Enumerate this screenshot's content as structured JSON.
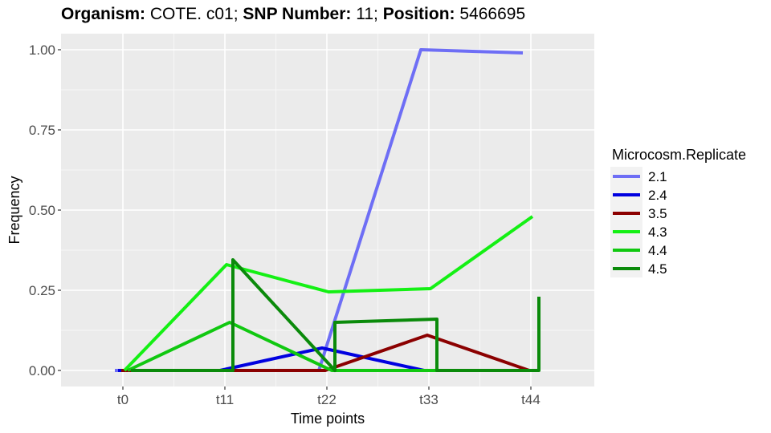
{
  "title": {
    "organism_label": "Organism:",
    "organism_value": " COTE. c01; ",
    "snp_label": "SNP Number:",
    "snp_value": " 11; ",
    "position_label": "Position:",
    "position_value": " 5466695"
  },
  "chart_data": {
    "type": "line",
    "title": "Organism: COTE. c01; SNP Number: 11; Position: 5466695",
    "xlabel": "Time points",
    "ylabel": "Frequency",
    "categories": [
      "t0",
      "t11",
      "t22",
      "t33",
      "t44"
    ],
    "yticks": [
      0.0,
      0.25,
      0.5,
      0.75,
      1.0
    ],
    "ytick_labels": [
      "0.00",
      "0.25",
      "0.50",
      "0.75",
      "1.00"
    ],
    "ylim": [
      -0.05,
      1.05
    ],
    "grid": true,
    "panel_background": "#ebebeb",
    "legend": {
      "title": "Microcosm.Replicate",
      "position": "right"
    },
    "series": [
      {
        "name": "2.1",
        "color": "#6e6ef5",
        "points": [
          [
            0,
            0.0
          ],
          [
            1,
            0.0
          ],
          [
            2,
            0.0
          ],
          [
            3,
            1.0
          ],
          [
            4,
            0.99
          ]
        ]
      },
      {
        "name": "2.4",
        "color": "#0000e0",
        "points": [
          [
            0,
            0.0
          ],
          [
            1,
            0.0
          ],
          [
            2,
            0.07
          ],
          [
            3,
            0.0
          ],
          [
            4,
            0.0
          ]
        ]
      },
      {
        "name": "3.5",
        "color": "#8b0000",
        "points": [
          [
            0,
            0.0
          ],
          [
            1,
            0.0
          ],
          [
            2,
            0.0
          ],
          [
            3,
            0.11
          ],
          [
            4,
            0.0
          ]
        ]
      },
      {
        "name": "4.3",
        "color": "#14f014",
        "points": [
          [
            0,
            0.0
          ],
          [
            1,
            0.33
          ],
          [
            2,
            0.245
          ],
          [
            3,
            0.255
          ],
          [
            4,
            0.48
          ]
        ]
      },
      {
        "name": "4.4",
        "color": "#10c810",
        "points": [
          [
            0,
            0.0
          ],
          [
            1,
            0.15
          ],
          [
            2,
            0.0
          ],
          [
            3,
            0.0
          ],
          [
            4,
            0.0
          ]
        ]
      },
      {
        "name": "4.5",
        "color": "#0a8a0a",
        "points": [
          [
            0,
            0.0
          ],
          [
            1,
            0.0
          ],
          [
            1,
            0.345
          ],
          [
            2,
            0.0
          ],
          [
            2,
            0.15
          ],
          [
            3,
            0.16
          ],
          [
            3,
            0.0
          ],
          [
            4,
            0.0
          ],
          [
            4,
            0.23
          ]
        ]
      }
    ]
  }
}
